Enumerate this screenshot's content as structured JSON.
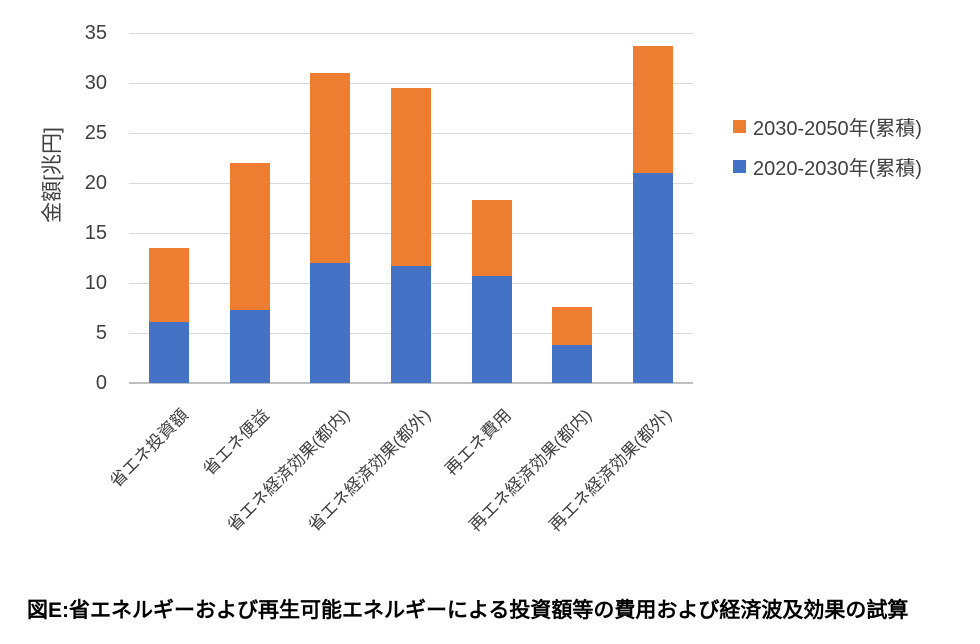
{
  "figure": {
    "caption": "図E:省エネルギーおよび再生可能エネルギーによる投資額等の費用および経済波及効果の試算"
  },
  "chart_data": {
    "type": "bar",
    "stacked": true,
    "title": "",
    "ylabel": "金額[兆円]",
    "xlabel": "",
    "categories": [
      "省エネ投資額",
      "省エネ便益",
      "省エネ経済効果(都内)",
      "省エネ経済効果(都外)",
      "再エネ費用",
      "再エネ経済効果(都内)",
      "再エネ経済効果(都外)"
    ],
    "series": [
      {
        "name": "2020-2030年(累積)",
        "color": "#4472C4",
        "values": [
          6.1,
          7.3,
          12.0,
          11.7,
          10.7,
          3.8,
          21.0
        ]
      },
      {
        "name": "2030-2050年(累積)",
        "color": "#ED7D31",
        "values": [
          7.4,
          14.7,
          19.0,
          17.8,
          7.6,
          3.8,
          12.7
        ]
      }
    ],
    "totals": [
      13.5,
      22.0,
      31.0,
      29.5,
      18.3,
      7.6,
      33.7
    ],
    "ylim": [
      0,
      35
    ],
    "yticks": [
      0,
      5,
      10,
      15,
      20,
      25,
      30,
      35
    ],
    "grid": true,
    "legend_position": "right",
    "legend_order_note": "orange series listed first in legend"
  },
  "colors": {
    "grid": "#D9D9D9",
    "axis_line": "#BFBFBF",
    "text": "#404040",
    "caption": "#000000",
    "background": "#FFFFFF"
  }
}
